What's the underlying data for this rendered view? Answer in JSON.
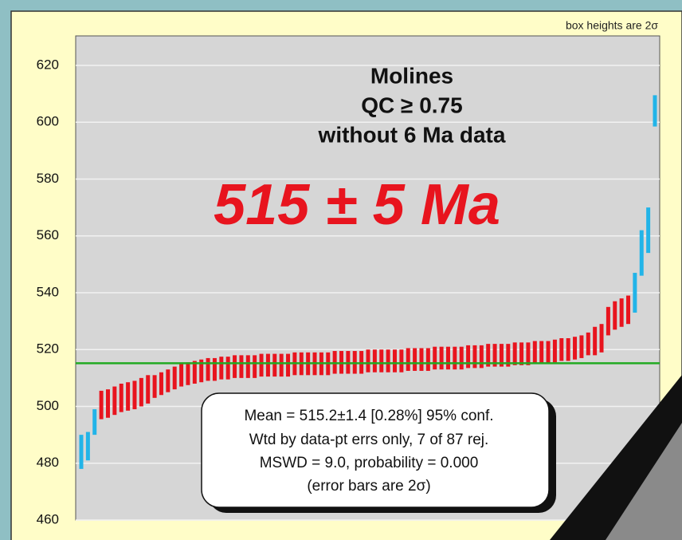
{
  "chart_data": {
    "type": "error_box",
    "note_top": "box heights are 2σ",
    "title_lines": [
      "Molines",
      "QC ≥ 0.75",
      "without 6 Ma data"
    ],
    "result": "515 ± 5 Ma",
    "stats_lines": [
      "Mean = 515.2±1.4  [0.28%]  95% conf.",
      "Wtd by data-pt errs only, 7 of 87 rej.",
      "MSWD = 9.0, probability = 0.000",
      "(error bars are 2σ)"
    ],
    "mean": 515.2,
    "mean_color": "#22aa22",
    "values": [
      484,
      486,
      494.5,
      500.5,
      501,
      502,
      503,
      503.5,
      504,
      505,
      506,
      507,
      508,
      509,
      510,
      511,
      511.5,
      512,
      512.5,
      513,
      513,
      513.5,
      513.5,
      514,
      514,
      514,
      514,
      514.5,
      514.5,
      514.5,
      514.5,
      514.5,
      515,
      515,
      515,
      515,
      515,
      515,
      515.5,
      515.5,
      515.5,
      515.5,
      515.5,
      516,
      516,
      516,
      516,
      516,
      516,
      516.5,
      516.5,
      516.5,
      516.5,
      517,
      517,
      517,
      517,
      517,
      517.5,
      517.5,
      517.5,
      518,
      518,
      518,
      518,
      518.5,
      518.5,
      518.5,
      519,
      519,
      519,
      519.5,
      520,
      520,
      520.5,
      521,
      522,
      523,
      524,
      530,
      532,
      533,
      534,
      540,
      554,
      562,
      604
    ],
    "errors": [
      6,
      5,
      4.5,
      5,
      5,
      5,
      5,
      5,
      5,
      5,
      5,
      4,
      4,
      4,
      4,
      4,
      4,
      4,
      4,
      4,
      4,
      4,
      4,
      4,
      4,
      4,
      4,
      4,
      4,
      4,
      4,
      4,
      4,
      4,
      4,
      4,
      4,
      4,
      4,
      4,
      4,
      4,
      4,
      4,
      4,
      4,
      4,
      4,
      4,
      4,
      4,
      4,
      4,
      4,
      4,
      4,
      4,
      4,
      4,
      4,
      4,
      4,
      4,
      4,
      4,
      4,
      4,
      4,
      4,
      4,
      4,
      4,
      4,
      4,
      4,
      4,
      4,
      5,
      5,
      5,
      5,
      5,
      5,
      7,
      8,
      8,
      5.5
    ],
    "colors": [
      "#22b4e8",
      "#22b4e8",
      "#22b4e8",
      "#e8141e",
      "#e8141e",
      "#e8141e",
      "#e8141e",
      "#e8141e",
      "#e8141e",
      "#e8141e",
      "#e8141e",
      "#e8141e",
      "#e8141e",
      "#e8141e",
      "#e8141e",
      "#e8141e",
      "#e8141e",
      "#e8141e",
      "#e8141e",
      "#e8141e",
      "#e8141e",
      "#e8141e",
      "#e8141e",
      "#e8141e",
      "#e8141e",
      "#e8141e",
      "#e8141e",
      "#e8141e",
      "#e8141e",
      "#e8141e",
      "#e8141e",
      "#e8141e",
      "#e8141e",
      "#e8141e",
      "#e8141e",
      "#e8141e",
      "#e8141e",
      "#e8141e",
      "#e8141e",
      "#e8141e",
      "#e8141e",
      "#e8141e",
      "#e8141e",
      "#e8141e",
      "#e8141e",
      "#e8141e",
      "#e8141e",
      "#e8141e",
      "#e8141e",
      "#e8141e",
      "#e8141e",
      "#e8141e",
      "#e8141e",
      "#e8141e",
      "#e8141e",
      "#e8141e",
      "#e8141e",
      "#e8141e",
      "#e8141e",
      "#e8141e",
      "#e8141e",
      "#e8141e",
      "#e8141e",
      "#e8141e",
      "#e8141e",
      "#e8141e",
      "#e8141e",
      "#e8141e",
      "#e8141e",
      "#e8141e",
      "#e8141e",
      "#e8141e",
      "#e8141e",
      "#e8141e",
      "#e8141e",
      "#e8141e",
      "#e8141e",
      "#e8141e",
      "#e8141e",
      "#e8141e",
      "#e8141e",
      "#e8141e",
      "#e8141e",
      "#22b4e8",
      "#22b4e8",
      "#22b4e8",
      "#22b4e8"
    ],
    "ylim": [
      460,
      620
    ],
    "yticks": [
      460,
      480,
      500,
      520,
      540,
      560,
      580,
      600,
      620
    ],
    "grid": true
  }
}
